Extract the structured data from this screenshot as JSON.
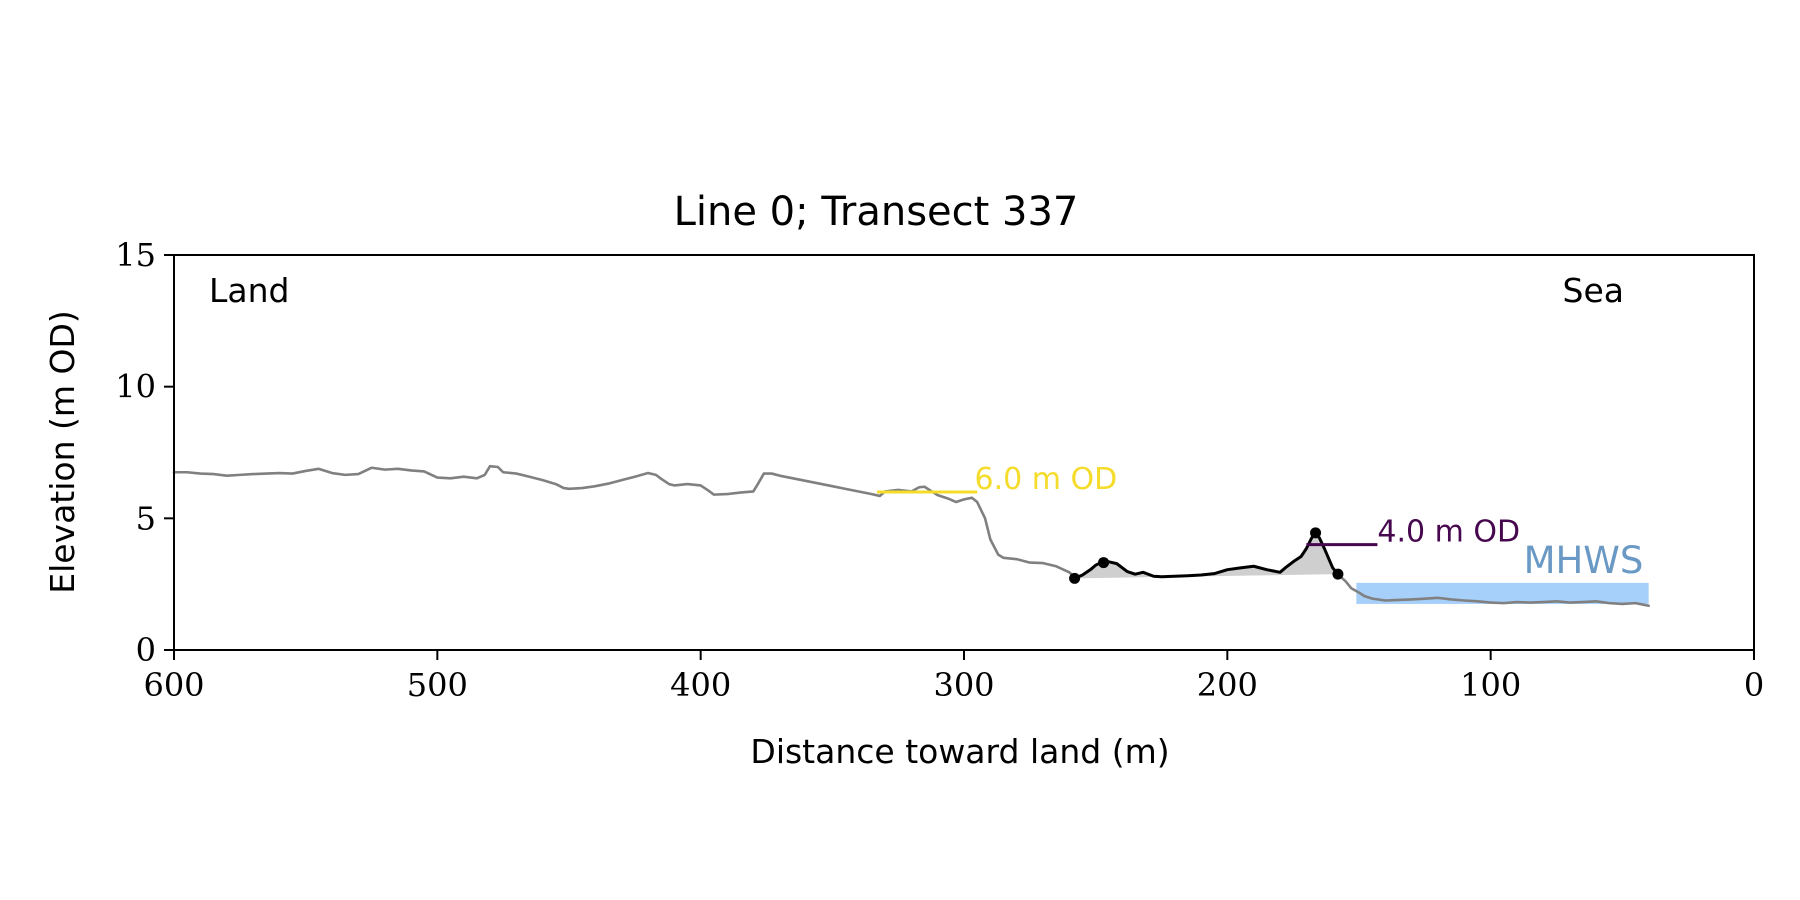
{
  "chart_data": {
    "type": "line",
    "title": "Line 0; Transect 337",
    "xlabel": "Distance toward land (m)",
    "ylabel": "Elevation (m OD)",
    "xlim": [
      600,
      0
    ],
    "ylim": [
      0,
      15
    ],
    "x_ticks": [
      600,
      500,
      400,
      300,
      200,
      100,
      0
    ],
    "y_ticks": [
      0,
      5,
      10,
      15
    ],
    "x_tick_labels": [
      "600",
      "500",
      "400",
      "300",
      "200",
      "100",
      "0"
    ],
    "y_tick_labels": [
      "0",
      "5",
      "10",
      "15"
    ],
    "grid": false,
    "corner_labels": {
      "left": "Land",
      "right": "Sea"
    },
    "series": [
      {
        "role": "profile",
        "color": "#808080",
        "x": [
          600,
          595,
          590,
          585,
          580,
          575,
          570,
          565,
          560,
          555,
          550,
          545,
          540,
          535,
          530,
          525,
          520,
          515,
          510,
          505,
          500,
          495,
          490,
          485,
          482,
          480,
          477,
          475,
          470,
          465,
          460,
          455,
          452,
          450,
          445,
          440,
          435,
          430,
          425,
          420,
          417,
          415,
          412,
          410,
          405,
          400,
          397,
          395,
          390,
          385,
          380,
          378,
          376,
          373,
          370,
          365,
          360,
          355,
          350,
          345,
          340,
          335,
          332,
          330,
          325,
          320,
          317,
          315,
          310,
          306,
          303,
          300,
          297,
          295,
          292,
          290,
          287,
          285,
          280,
          275,
          270,
          265,
          260,
          258
        ],
        "y": [
          6.75,
          6.75,
          6.7,
          6.68,
          6.62,
          6.65,
          6.68,
          6.7,
          6.72,
          6.7,
          6.8,
          6.88,
          6.72,
          6.65,
          6.68,
          6.92,
          6.85,
          6.88,
          6.82,
          6.78,
          6.55,
          6.52,
          6.58,
          6.52,
          6.65,
          6.98,
          6.95,
          6.75,
          6.7,
          6.58,
          6.45,
          6.3,
          6.15,
          6.12,
          6.15,
          6.22,
          6.32,
          6.45,
          6.58,
          6.72,
          6.65,
          6.5,
          6.3,
          6.25,
          6.3,
          6.25,
          6.05,
          5.9,
          5.92,
          5.98,
          6.02,
          6.35,
          6.7,
          6.7,
          6.62,
          6.52,
          6.42,
          6.32,
          6.22,
          6.12,
          6.02,
          5.92,
          5.85,
          6.02,
          6.08,
          6.02,
          6.18,
          6.2,
          5.88,
          5.75,
          5.62,
          5.72,
          5.78,
          5.62,
          5.0,
          4.2,
          3.62,
          3.5,
          3.45,
          3.32,
          3.3,
          3.18,
          2.95,
          2.75
        ]
      },
      {
        "role": "profile",
        "color": "#808080",
        "x": [
          158,
          155,
          153,
          150,
          148,
          145,
          140,
          135,
          130,
          125,
          120,
          115,
          110,
          105,
          100,
          95,
          90,
          85,
          80,
          75,
          70,
          65,
          60,
          55,
          50,
          45,
          42,
          40
        ],
        "y": [
          2.88,
          2.6,
          2.35,
          2.18,
          2.05,
          1.95,
          1.88,
          1.9,
          1.92,
          1.95,
          1.98,
          1.92,
          1.88,
          1.85,
          1.8,
          1.78,
          1.82,
          1.8,
          1.82,
          1.85,
          1.8,
          1.82,
          1.85,
          1.78,
          1.75,
          1.78,
          1.72,
          1.68
        ]
      },
      {
        "role": "dune",
        "color": "#000000",
        "x": [
          258,
          255,
          252,
          250,
          248,
          245,
          242,
          238,
          235,
          232,
          228,
          225,
          220,
          215,
          210,
          205,
          200,
          195,
          190,
          185,
          180,
          178,
          175,
          172,
          170,
          168,
          166.5,
          165,
          163,
          160,
          158
        ],
        "y": [
          2.72,
          2.85,
          3.05,
          3.22,
          3.32,
          3.35,
          3.28,
          2.98,
          2.88,
          2.95,
          2.8,
          2.78,
          2.8,
          2.82,
          2.85,
          2.9,
          3.05,
          3.12,
          3.18,
          3.05,
          2.95,
          3.12,
          3.35,
          3.55,
          3.85,
          4.25,
          4.45,
          4.25,
          3.82,
          3.12,
          2.88
        ]
      }
    ],
    "markers": {
      "color": "#000000",
      "points": [
        {
          "x": 258,
          "y": 2.72
        },
        {
          "x": 247,
          "y": 3.32
        },
        {
          "x": 166.5,
          "y": 4.45
        },
        {
          "x": 158,
          "y": 2.88
        }
      ]
    },
    "dune_fill": {
      "color": "#cfcfcf",
      "baseline": {
        "x": [
          258,
          158
        ],
        "y": [
          2.72,
          2.88
        ]
      }
    },
    "annotations": [
      {
        "text": "6.0 m OD",
        "color": "#f5dc2a",
        "line": {
          "x": [
            333,
            295
          ],
          "y": [
            6.0,
            6.0
          ]
        },
        "label_pos": {
          "x": 296,
          "y": 6.0
        }
      },
      {
        "text": "4.0 m OD",
        "color": "#46074e",
        "line": {
          "x": [
            170,
            143
          ],
          "y": [
            4.0,
            4.0
          ]
        },
        "label_pos": {
          "x": 143,
          "y": 4.0
        }
      }
    ],
    "mhws": {
      "text": "MHWS",
      "label_color": "#6a99c5",
      "fill_color": "#a6cffa",
      "x_range": [
        151,
        40
      ],
      "y_top": 2.55,
      "label_pos": {
        "x": 42,
        "y": 2.55
      }
    }
  }
}
